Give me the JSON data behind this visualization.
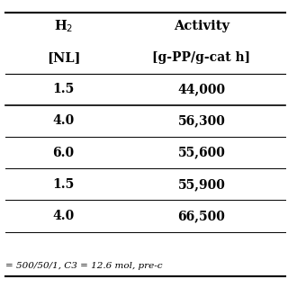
{
  "col1_header1": "H$_2$",
  "col2_header1": "Activity",
  "col1_header2": "[NL]",
  "col2_header2": "[g-PP/g-cat h]",
  "rows": [
    [
      "1.5",
      "44,000"
    ],
    [
      "4.0",
      "56,300"
    ],
    [
      "6.0",
      "55,600"
    ],
    [
      "1.5",
      "55,900"
    ],
    [
      "4.0",
      "66,500"
    ]
  ],
  "footer": "= 500/50/1, C3 = 12.6 mol, pre-c",
  "bg_color": "#ffffff",
  "text_color": "#000000",
  "line_color": "#000000",
  "font_size": 10,
  "header_font_size": 10.5
}
